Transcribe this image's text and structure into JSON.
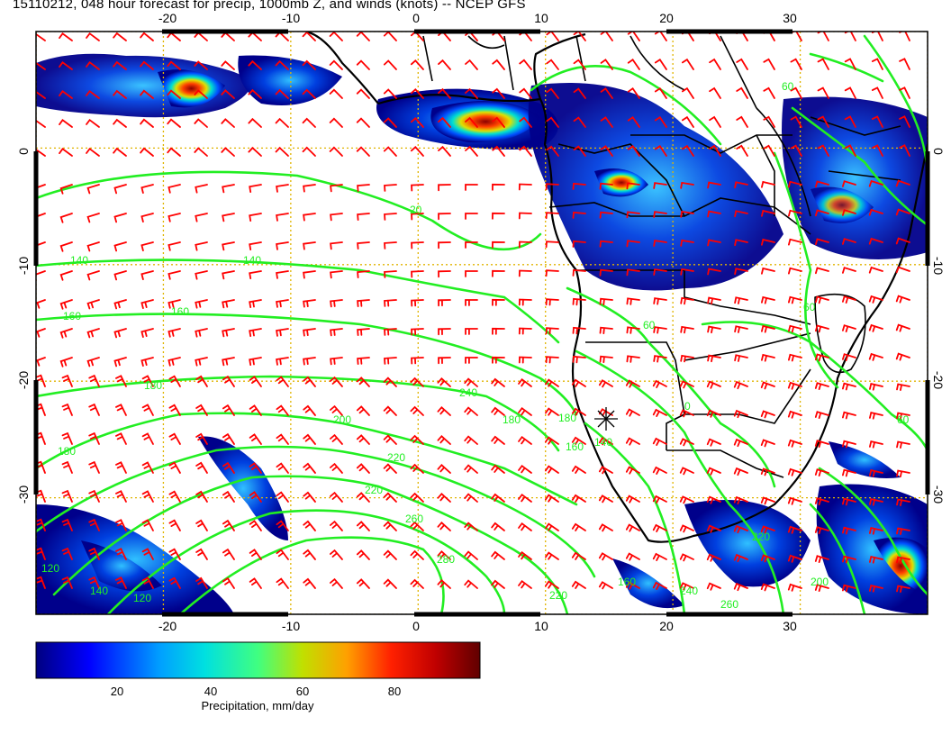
{
  "title": "15110212, 048 hour forecast for precip, 1000mb Z, and winds (knots) -- NCEP GFS",
  "map": {
    "lon_range": [
      -30,
      40
    ],
    "lat_range": [
      -40,
      10
    ],
    "top_lon_ticks": [
      "-20",
      "-10",
      "0",
      "10",
      "20",
      "30"
    ],
    "bottom_lon_ticks": [
      "-20",
      "-10",
      "0",
      "10",
      "20",
      "30"
    ],
    "left_lat_ticks": [
      "0",
      "-10",
      "-20",
      "-30"
    ],
    "right_lat_ticks": [
      "0",
      "-10",
      "-20",
      "-30"
    ],
    "graticule_color": "#e0b400",
    "contour_color": "#22ee22",
    "barb_color": "#ff0000",
    "coast_color": "#000000",
    "contour_labels": [
      "20",
      "140",
      "140",
      "160",
      "160",
      "180",
      "180",
      "200",
      "220",
      "220",
      "240",
      "260",
      "280",
      "180",
      "160",
      "140",
      "120",
      "140",
      "120",
      "60",
      "60",
      "60",
      "60",
      "0",
      "180",
      "220",
      "240",
      "260",
      "200",
      "220",
      "160"
    ]
  },
  "colorbar": {
    "ticks": [
      "20",
      "40",
      "60",
      "80"
    ],
    "title": "Precipitation, mm/day",
    "range": [
      0,
      100
    ],
    "colors": [
      "#000080",
      "#0000ff",
      "#00a0ff",
      "#00e0e0",
      "#40ff80",
      "#c0e000",
      "#ffa000",
      "#ff2000",
      "#c00000",
      "#600000"
    ]
  }
}
